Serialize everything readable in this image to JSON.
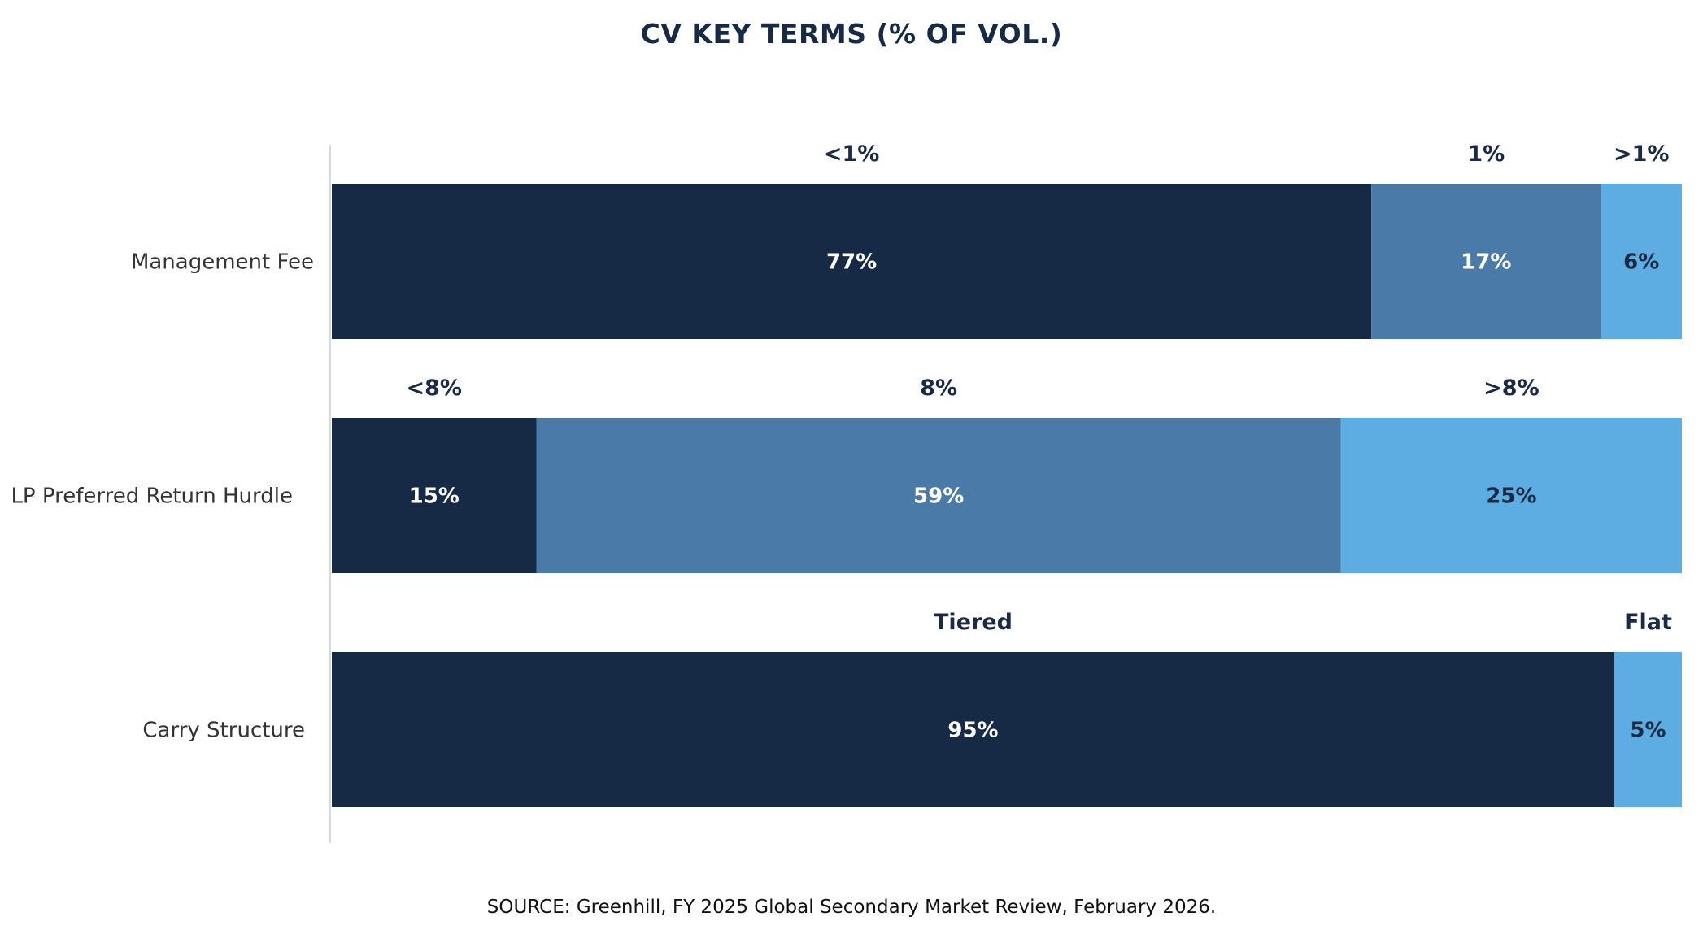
{
  "title": "CV KEY TERMS (% OF VOL.)",
  "source": "SOURCE: Greenhill, FY 2025 Global Secondary Market Review, February 2026.",
  "colors": {
    "dark_navy": "#172a45",
    "mid_blue": "#497aa8",
    "light_blue": "#5dade2"
  },
  "chart_data": {
    "type": "bar",
    "orientation": "horizontal",
    "stacked": true,
    "percent_stacked": true,
    "title": "CV KEY TERMS (% OF VOL.)",
    "categories": [
      "Management Fee",
      "LP Preferred Return Hurdle",
      "Carry Structure"
    ],
    "rows": [
      {
        "category": "Management Fee",
        "segments": [
          {
            "name": "<1%",
            "value": 77,
            "label": "77%",
            "color": "#172a45"
          },
          {
            "name": "1%",
            "value": 17,
            "label": "17%",
            "color": "#497aa8"
          },
          {
            "name": ">1%",
            "value": 6,
            "label": "6%",
            "color": "#5dade2"
          }
        ]
      },
      {
        "category": "LP Preferred Return Hurdle",
        "segments": [
          {
            "name": "<8%",
            "value": 15,
            "label": "15%",
            "color": "#172a45"
          },
          {
            "name": "8%",
            "value": 59,
            "label": "59%",
            "color": "#497aa8"
          },
          {
            "name": ">8%",
            "value": 25,
            "label": "25%",
            "color": "#5dade2"
          }
        ]
      },
      {
        "category": "Carry Structure",
        "segments": [
          {
            "name": "Tiered",
            "value": 95,
            "label": "95%",
            "color": "#172a45"
          },
          {
            "name": "Flat",
            "value": 5,
            "label": "5%",
            "color": "#5dade2"
          }
        ]
      }
    ],
    "xlabel": "",
    "ylabel": "",
    "grid": false,
    "legend": "none"
  }
}
